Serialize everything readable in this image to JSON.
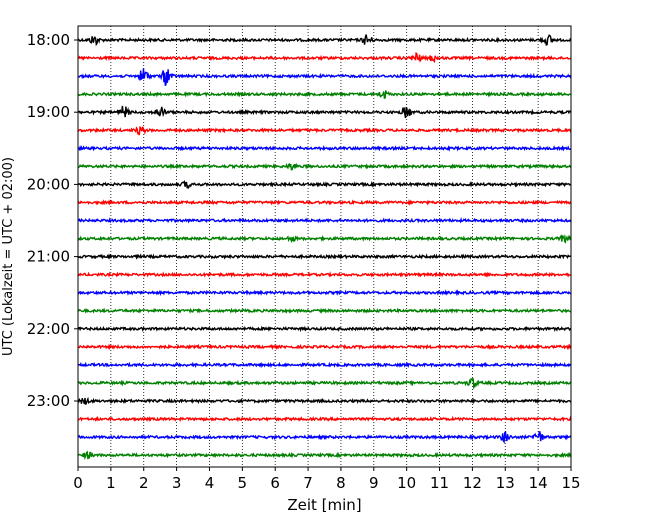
{
  "chart_data": {
    "type": "line",
    "title": "",
    "xlabel": "Zeit  [min]",
    "ylabel": "UTC (Lokalzeit = UTC + 02:00)",
    "xlim": [
      0,
      15
    ],
    "x_ticks": [
      0,
      1,
      2,
      3,
      4,
      5,
      6,
      7,
      8,
      9,
      10,
      11,
      12,
      13,
      14,
      15
    ],
    "y_ticks": [
      "18:00",
      "19:00",
      "20:00",
      "21:00",
      "22:00",
      "23:00"
    ],
    "grid": "vertical dotted",
    "trace_interval_minutes": 15,
    "trace_colors": [
      "#000000",
      "#ff0000",
      "#0000ff",
      "#008000"
    ],
    "series": [
      {
        "start": "18:00",
        "color": "#000000",
        "bursts": [
          {
            "x": 0.5,
            "amp": 5
          },
          {
            "x": 8.8,
            "amp": 6
          },
          {
            "x": 14.3,
            "amp": 5
          }
        ]
      },
      {
        "start": "18:15",
        "color": "#ff0000",
        "bursts": [
          {
            "x": 10.3,
            "amp": 5
          },
          {
            "x": 10.8,
            "amp": 3
          }
        ]
      },
      {
        "start": "18:30",
        "color": "#0000ff",
        "bursts": [
          {
            "x": 2.0,
            "amp": 8
          },
          {
            "x": 2.7,
            "amp": 10
          }
        ]
      },
      {
        "start": "18:45",
        "color": "#008000",
        "bursts": [
          {
            "x": 9.3,
            "amp": 4
          }
        ]
      },
      {
        "start": "19:00",
        "color": "#000000",
        "bursts": [
          {
            "x": 1.4,
            "amp": 6
          },
          {
            "x": 2.5,
            "amp": 6
          },
          {
            "x": 10.0,
            "amp": 6
          }
        ]
      },
      {
        "start": "19:15",
        "color": "#ff0000",
        "bursts": [
          {
            "x": 1.9,
            "amp": 4
          }
        ]
      },
      {
        "start": "19:30",
        "color": "#0000ff",
        "bursts": []
      },
      {
        "start": "19:45",
        "color": "#008000",
        "bursts": [
          {
            "x": 6.5,
            "amp": 3
          }
        ]
      },
      {
        "start": "20:00",
        "color": "#000000",
        "bursts": [
          {
            "x": 3.3,
            "amp": 3
          }
        ]
      },
      {
        "start": "20:15",
        "color": "#ff0000",
        "bursts": []
      },
      {
        "start": "20:30",
        "color": "#0000ff",
        "bursts": []
      },
      {
        "start": "20:45",
        "color": "#008000",
        "bursts": [
          {
            "x": 6.5,
            "amp": 2
          },
          {
            "x": 14.8,
            "amp": 3
          }
        ]
      },
      {
        "start": "21:00",
        "color": "#000000",
        "bursts": []
      },
      {
        "start": "21:15",
        "color": "#ff0000",
        "bursts": []
      },
      {
        "start": "21:30",
        "color": "#0000ff",
        "bursts": []
      },
      {
        "start": "21:45",
        "color": "#008000",
        "bursts": []
      },
      {
        "start": "22:00",
        "color": "#000000",
        "bursts": []
      },
      {
        "start": "22:15",
        "color": "#ff0000",
        "bursts": []
      },
      {
        "start": "22:30",
        "color": "#0000ff",
        "bursts": []
      },
      {
        "start": "22:45",
        "color": "#008000",
        "bursts": [
          {
            "x": 12.0,
            "amp": 5
          }
        ]
      },
      {
        "start": "23:00",
        "color": "#000000",
        "bursts": [
          {
            "x": 0.2,
            "amp": 3
          }
        ]
      },
      {
        "start": "23:15",
        "color": "#ff0000",
        "bursts": []
      },
      {
        "start": "23:30",
        "color": "#0000ff",
        "bursts": [
          {
            "x": 13.0,
            "amp": 5
          },
          {
            "x": 14.0,
            "amp": 7
          }
        ]
      },
      {
        "start": "23:45",
        "color": "#008000",
        "bursts": [
          {
            "x": 0.3,
            "amp": 3
          }
        ]
      }
    ]
  }
}
